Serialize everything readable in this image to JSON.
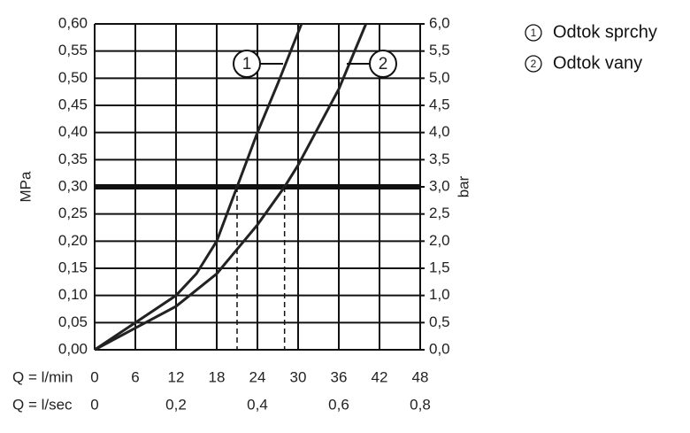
{
  "chart_data": {
    "type": "line",
    "ylabel": "MPa",
    "y2label": "bar",
    "xlabel": "Q = l/min",
    "x2label": "Q = l/sec",
    "xlim": [
      0,
      48
    ],
    "xticks": [
      0,
      6,
      12,
      18,
      24,
      30,
      36,
      42,
      48
    ],
    "x2lim": [
      0,
      0.8
    ],
    "x2ticks": [
      0,
      {
        "value": 0.2,
        "label": "0,2"
      },
      {
        "value": 0.4,
        "label": "0,4"
      },
      {
        "value": 0.6,
        "label": "0,6"
      },
      {
        "value": 0.8,
        "label": "0,8"
      }
    ],
    "ylim": [
      0,
      0.6
    ],
    "yticks": [
      {
        "value": 0,
        "label": "0,00"
      },
      {
        "value": 0.05,
        "label": "0,05"
      },
      {
        "value": 0.1,
        "label": "0,10"
      },
      {
        "value": 0.15,
        "label": "0,15"
      },
      {
        "value": 0.2,
        "label": "0,20"
      },
      {
        "value": 0.25,
        "label": "0,25"
      },
      {
        "value": 0.3,
        "label": "0,30"
      },
      {
        "value": 0.35,
        "label": "0,35"
      },
      {
        "value": 0.4,
        "label": "0,40"
      },
      {
        "value": 0.45,
        "label": "0,45"
      },
      {
        "value": 0.5,
        "label": "0,50"
      },
      {
        "value": 0.55,
        "label": "0,55"
      },
      {
        "value": 0.6,
        "label": "0,60"
      }
    ],
    "y2lim": [
      0,
      6
    ],
    "y2ticks": [
      {
        "value": 0,
        "label": "0,0"
      },
      {
        "value": 0.5,
        "label": "0,5"
      },
      {
        "value": 1,
        "label": "1,0"
      },
      {
        "value": 1.5,
        "label": "1,5"
      },
      {
        "value": 2,
        "label": "2,0"
      },
      {
        "value": 2.5,
        "label": "2,5"
      },
      {
        "value": 3,
        "label": "3,0"
      },
      {
        "value": 3.5,
        "label": "3,5"
      },
      {
        "value": 4,
        "label": "4,0"
      },
      {
        "value": 4.5,
        "label": "4,5"
      },
      {
        "value": 5,
        "label": "5,0"
      },
      {
        "value": 5.5,
        "label": "5,5"
      },
      {
        "value": 6,
        "label": "6,0"
      }
    ],
    "grid": true,
    "reference_y": 0.3,
    "marked_x": [
      21,
      28
    ],
    "series": [
      {
        "name": "Odtok sprchy",
        "marker": "1",
        "color": "#222222",
        "x": [
          0,
          6,
          12,
          15,
          18,
          21,
          24,
          27,
          30.5
        ],
        "values": [
          0,
          0.05,
          0.1,
          0.14,
          0.2,
          0.3,
          0.4,
          0.49,
          0.6
        ]
      },
      {
        "name": "Odtok vany",
        "marker": "2",
        "color": "#222222",
        "x": [
          0,
          6,
          12,
          18,
          24,
          28,
          30,
          33,
          36,
          40
        ],
        "values": [
          0,
          0.04,
          0.08,
          0.14,
          0.23,
          0.3,
          0.34,
          0.41,
          0.48,
          0.6
        ]
      }
    ]
  }
}
